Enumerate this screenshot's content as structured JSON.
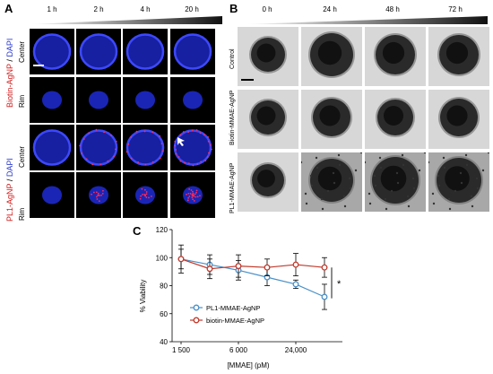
{
  "panelA": {
    "letter": "A",
    "times": [
      "1 h",
      "2 h",
      "4 h",
      "20 h"
    ],
    "groups": [
      {
        "label_main": "Biotin-AgNP",
        "label_sep": " / ",
        "label_dapi": "DAPI",
        "rows": [
          "Center",
          "Rim"
        ]
      },
      {
        "label_main": "PL1-AgNP",
        "label_sep": " / ",
        "label_dapi": "DAPI",
        "rows": [
          "Center",
          "Rim"
        ]
      }
    ]
  },
  "panelB": {
    "letter": "B",
    "times": [
      "0 h",
      "24 h",
      "48 h",
      "72 h"
    ],
    "rows": [
      "Control",
      "Biotin-MMAE-AgNP",
      "PL1-MMAE-AgNP"
    ]
  },
  "panelC": {
    "letter": "C",
    "chart_data": {
      "type": "line",
      "xlabel": "[MMAE] (pM)",
      "ylabel": "% Viability",
      "x_ticks": [
        "1 500",
        "6 000",
        "24,000"
      ],
      "y_ticks": [
        "40",
        "60",
        "80",
        "100",
        "120"
      ],
      "ylim": [
        40,
        120
      ],
      "x_scale": "log",
      "x": [
        1500,
        3000,
        6000,
        12000,
        24000,
        48000
      ],
      "series": [
        {
          "name": "PL1-MMAE-AgNP",
          "color": "#4a90c8",
          "values": [
            99,
            95,
            91,
            86,
            81,
            72
          ],
          "err": [
            7,
            7,
            7,
            6,
            3,
            9
          ]
        },
        {
          "name": "biotin-MMAE-AgNP",
          "color": "#c0392b",
          "values": [
            99,
            92,
            94,
            93,
            95,
            93
          ],
          "err": [
            10,
            7,
            8,
            6,
            8,
            7
          ]
        }
      ],
      "significance": "*",
      "legend_position": "bottom-left"
    }
  }
}
